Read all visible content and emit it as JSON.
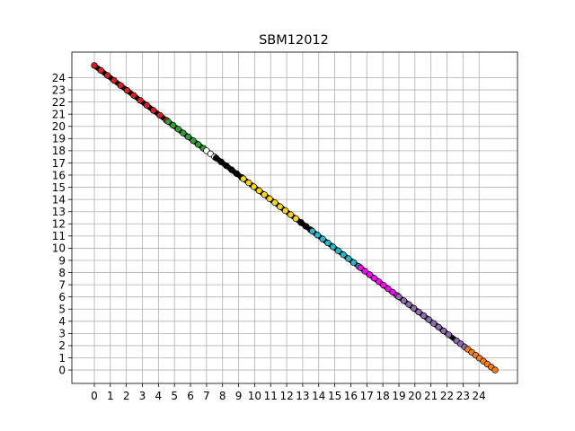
{
  "chart_data": {
    "type": "scatter",
    "title": "SBM12012",
    "xlabel": "",
    "ylabel": "",
    "xlim": [
      -1.4,
      26.4
    ],
    "ylim": [
      -1.1,
      26.1
    ],
    "xticks": [
      0,
      1,
      2,
      3,
      4,
      5,
      6,
      7,
      8,
      9,
      10,
      11,
      12,
      13,
      14,
      15,
      16,
      17,
      18,
      19,
      20,
      21,
      22,
      23,
      24
    ],
    "yticks": [
      0,
      1,
      2,
      3,
      4,
      5,
      6,
      7,
      8,
      9,
      10,
      11,
      12,
      13,
      14,
      15,
      16,
      17,
      18,
      19,
      20,
      21,
      22,
      23,
      24
    ],
    "grid": true,
    "legend": "none",
    "line": {
      "x_start": 0,
      "y_start": 25,
      "x_end": 25,
      "y_end": 0,
      "description_color": "#000000"
    },
    "segments": [
      {
        "color": "#e41a1c",
        "x_from": 0.0,
        "x_to": 4.5,
        "n": 12
      },
      {
        "color": "#2ca02c",
        "x_from": 4.6,
        "x_to": 6.8,
        "n": 8
      },
      {
        "color": "#ffffff",
        "x_from": 7.0,
        "x_to": 7.5,
        "n": 3
      },
      {
        "color": "#000000",
        "x_from": 7.6,
        "x_to": 9.2,
        "n": 6
      },
      {
        "color": "#ffd700",
        "x_from": 9.3,
        "x_to": 12.9,
        "n": 12
      },
      {
        "color": "#000000",
        "x_from": 12.9,
        "x_to": 13.5,
        "n": 3
      },
      {
        "color": "#17becf",
        "x_from": 13.6,
        "x_to": 16.5,
        "n": 10
      },
      {
        "color": "#ff00ff",
        "x_from": 16.6,
        "x_to": 18.9,
        "n": 9
      },
      {
        "color": "#8c6bb1",
        "x_from": 19.0,
        "x_to": 22.1,
        "n": 11
      },
      {
        "color": "#8c6bb1",
        "x_from": 22.6,
        "x_to": 23.1,
        "n": 3
      },
      {
        "color": "#ff7f0e",
        "x_from": 23.3,
        "x_to": 25.0,
        "n": 8
      }
    ]
  }
}
